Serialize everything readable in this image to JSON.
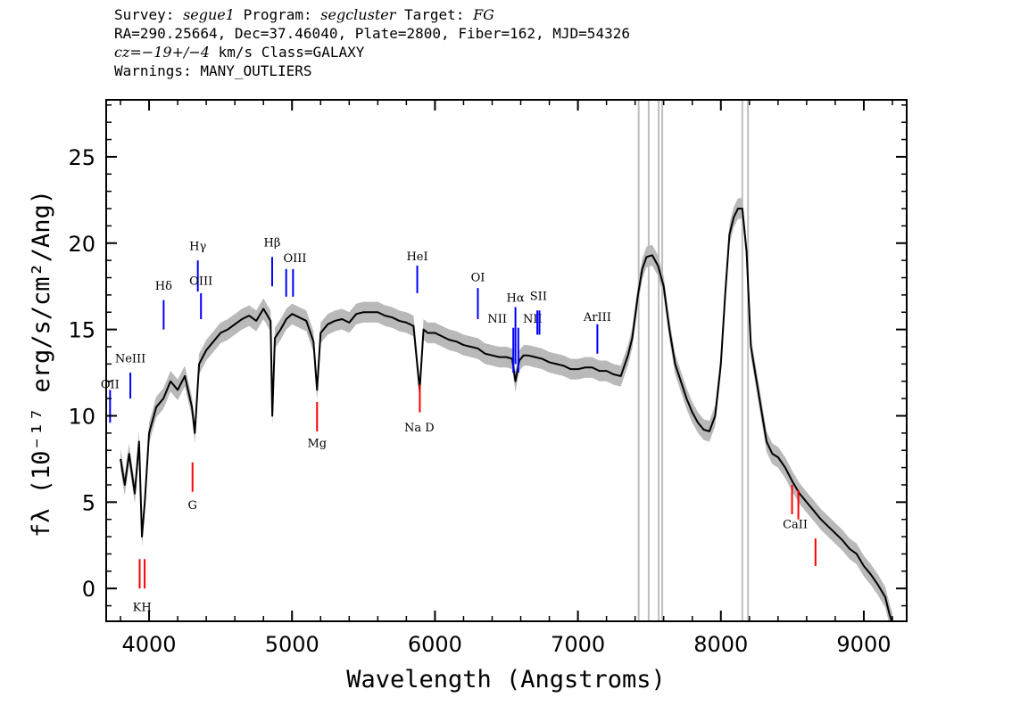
{
  "header": {
    "survey_label": "Survey:",
    "survey": "segue1",
    "program_label": "Program:",
    "program": "segcluster",
    "target_label": "Target:",
    "target": "FG",
    "line2": "RA=290.25664, Dec=37.46040, Plate=2800, Fiber=162, MJD=54326",
    "cz_label": "cz",
    "cz_value": "=−19+/−4",
    "cz_units": "km/s Class=GALAXY",
    "warnings": "Warnings: MANY_OUTLIERS"
  },
  "chart_data": {
    "type": "line",
    "xlabel": "Wavelength (Angstroms)",
    "ylabel": "fλ (10⁻¹⁷ erg/s/cm²/Ang)",
    "xlim": [
      3700,
      9300
    ],
    "ylim": [
      -1.9,
      28.3
    ],
    "xticks": [
      4000,
      5000,
      6000,
      7000,
      8000,
      9000
    ],
    "yticks": [
      0,
      5,
      10,
      15,
      20,
      25
    ],
    "series": [
      {
        "color": "#000000",
        "x": [
          3800,
          3830,
          3860,
          3900,
          3930,
          3950,
          3970,
          4000,
          4050,
          4100,
          4150,
          4200,
          4250,
          4300,
          4320,
          4350,
          4400,
          4450,
          4500,
          4550,
          4600,
          4650,
          4700,
          4750,
          4800,
          4850,
          4862,
          4880,
          4920,
          4960,
          5000,
          5050,
          5100,
          5150,
          5175,
          5200,
          5250,
          5300,
          5350,
          5400,
          5450,
          5500,
          5550,
          5600,
          5650,
          5700,
          5750,
          5800,
          5850,
          5893,
          5920,
          5950,
          6000,
          6050,
          6100,
          6150,
          6200,
          6250,
          6300,
          6350,
          6400,
          6450,
          6500,
          6540,
          6563,
          6590,
          6620,
          6650,
          6700,
          6750,
          6800,
          6850,
          6900,
          6950,
          7000,
          7050,
          7100,
          7150,
          7200,
          7250,
          7300,
          7350,
          7380,
          7420,
          7450,
          7480,
          7520,
          7560,
          7600,
          7640,
          7680,
          7720,
          7760,
          7800,
          7840,
          7880,
          7920,
          7960,
          8000,
          8030,
          8060,
          8090,
          8120,
          8150,
          8180,
          8210,
          8240,
          8280,
          8320,
          8360,
          8400,
          8450,
          8500,
          8550,
          8600,
          8650,
          8700,
          8750,
          8800,
          8850,
          8900,
          8950,
          9000,
          9050,
          9100,
          9150,
          9180,
          9200
        ],
        "y": [
          7.5,
          6,
          7.8,
          5.5,
          8.5,
          3,
          5,
          9,
          10.5,
          11,
          12,
          11.5,
          12.3,
          10.5,
          9,
          13,
          13.8,
          14.3,
          14.8,
          15,
          15.3,
          15.6,
          15.8,
          15.5,
          16.2,
          15.5,
          10,
          14.5,
          15,
          15.6,
          15.9,
          15.7,
          15.5,
          14.3,
          11.5,
          14.8,
          15.3,
          15.5,
          15.6,
          15.4,
          15.9,
          16,
          16,
          16,
          15.8,
          15.7,
          15.5,
          15.4,
          15.2,
          11.5,
          15,
          14.8,
          14.8,
          14.6,
          14.4,
          14.3,
          14.1,
          14,
          13.9,
          13.6,
          13.5,
          13.4,
          13.4,
          13.3,
          12,
          13.2,
          13.5,
          13.5,
          13.4,
          13.3,
          13.1,
          13,
          12.9,
          12.7,
          12.7,
          12.8,
          12.8,
          12.6,
          12.6,
          12.4,
          12.3,
          13.5,
          14.5,
          17,
          18.5,
          19.2,
          19.3,
          18.7,
          17.5,
          15,
          13,
          12,
          11,
          10.2,
          9.6,
          9.2,
          9.1,
          10,
          13,
          17,
          20.5,
          21.5,
          22,
          22,
          19.5,
          14,
          12.5,
          10.5,
          8.5,
          7.8,
          7.6,
          7,
          6.2,
          5.5,
          5,
          4.5,
          4,
          3.6,
          3.2,
          2.8,
          2.3,
          2,
          1.3,
          0.8,
          0.2,
          -0.5,
          -1.5,
          -2
        ]
      }
    ],
    "error_band_color": "#b9b9b9",
    "masked_wavelengths": [
      7425,
      7495,
      7565,
      7590,
      8150,
      8190
    ],
    "emission_lines": [
      {
        "name": "OII",
        "wavelength": 3727,
        "y0": 9.6,
        "y1": 11.5,
        "label_y": 11.6
      },
      {
        "name": "NeIII",
        "wavelength": 3869,
        "y0": 11.0,
        "y1": 12.5,
        "label_y": 13.1
      },
      {
        "name": "Hδ",
        "wavelength": 4102,
        "y0": 15.0,
        "y1": 16.7,
        "label_y": 17.3
      },
      {
        "name": "Hγ",
        "wavelength": 4341,
        "y0": 17.2,
        "y1": 19.0,
        "label_y": 19.6
      },
      {
        "name": "OIII",
        "wavelength": 4363,
        "y0": 15.6,
        "y1": 17.1,
        "label_y": 17.6
      },
      {
        "name": "Hβ",
        "wavelength": 4861,
        "y0": 17.5,
        "y1": 19.2,
        "label_y": 19.8
      },
      {
        "name": "OIII",
        "wavelength": 4959,
        "y0": 16.9,
        "y1": 18.5,
        "label_y": 18.9
      },
      {
        "name": "OIII",
        "wavelength": 5007,
        "y0": 16.9,
        "y1": 18.5,
        "label_y": 18.9
      },
      {
        "name": "HeI",
        "wavelength": 5876,
        "y0": 17.1,
        "y1": 18.7,
        "label_y": 19.0
      },
      {
        "name": "OI",
        "wavelength": 6300,
        "y0": 15.6,
        "y1": 17.4,
        "label_y": 17.8
      },
      {
        "name": "NII",
        "wavelength": 6548,
        "y0": 12.5,
        "y1": 15.1,
        "label_y": 15.4
      },
      {
        "name": "Hα",
        "wavelength": 6563,
        "y0": 13.0,
        "y1": 16.3,
        "label_y": 16.6
      },
      {
        "name": "NII",
        "wavelength": 6583,
        "y0": 12.5,
        "y1": 15.1,
        "label_y": 15.4
      },
      {
        "name": "SII",
        "wavelength": 6716,
        "y0": 14.7,
        "y1": 16.1,
        "label_y": 16.7
      },
      {
        "name": "SII",
        "wavelength": 6731,
        "y0": 14.7,
        "y1": 16.1,
        "label_y": 16.7
      },
      {
        "name": "ArIII",
        "wavelength": 7136,
        "y0": 13.6,
        "y1": 15.3,
        "label_y": 15.5
      }
    ],
    "absorption_lines": [
      {
        "name": "K",
        "wavelength": 3934,
        "y0": 0.0,
        "y1": 1.7
      },
      {
        "name": "H",
        "wavelength": 3969,
        "y0": 0.0,
        "y1": 1.7
      },
      {
        "name": "G",
        "wavelength": 4304,
        "y0": 5.6,
        "y1": 7.3
      },
      {
        "name": "Mg",
        "wavelength": 5175,
        "y0": 9.1,
        "y1": 10.8
      },
      {
        "name": "Na D",
        "wavelength": 5894,
        "y0": 10.2,
        "y1": 11.8
      },
      {
        "name": "CaII",
        "wavelength": 8498,
        "y0": 4.3,
        "y1": 6.0
      },
      {
        "name": "CaII",
        "wavelength": 8542,
        "y0": 4.0,
        "y1": 5.7
      },
      {
        "name": "CaII",
        "wavelength": 8662,
        "y0": 1.3,
        "y1": 2.9
      }
    ],
    "absorption_labels": [
      {
        "text": "KH",
        "wavelength": 3951,
        "y": -1.3
      },
      {
        "text": "G",
        "wavelength": 4304,
        "y": 4.6
      },
      {
        "text": "Mg",
        "wavelength": 5175,
        "y": 8.2
      },
      {
        "text": "Na D",
        "wavelength": 5890,
        "y": 9.1
      },
      {
        "text": "CaII",
        "wavelength": 8520,
        "y": 3.5
      }
    ],
    "colors": {
      "emission": "#0000ff",
      "absorption": "#ff0000",
      "mask": "#bebebe",
      "spectrum": "#000000"
    }
  }
}
